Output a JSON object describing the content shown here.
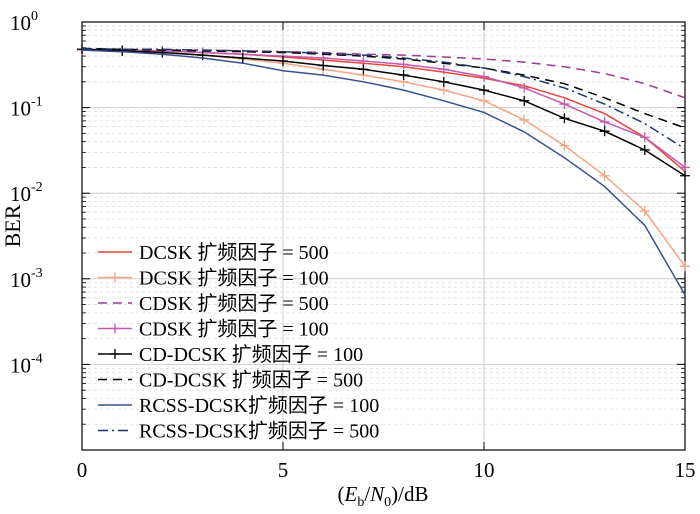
{
  "chart_data": {
    "type": "line",
    "xlabel_parts": {
      "lparen": "(",
      "E": "E",
      "b": "b",
      "slash": "/",
      "N": "N",
      "zero": "0",
      "tail": ")/dB"
    },
    "ylabel": "BER",
    "xlim": [
      0,
      15
    ],
    "ylim": [
      1e-05,
      1
    ],
    "yscale": "log",
    "grid": true,
    "legend_position": "bottom-left",
    "x_ticks": [
      0,
      5,
      10,
      15
    ],
    "x_tick_labels": [
      "0",
      "5",
      "10",
      "15"
    ],
    "y_ticks": [
      {
        "value": 1,
        "base": "10",
        "exp": "0"
      },
      {
        "value": 0.1,
        "base": "10",
        "exp": "-1"
      },
      {
        "value": 0.01,
        "base": "10",
        "exp": "-2"
      },
      {
        "value": 0.001,
        "base": "10",
        "exp": "-3"
      },
      {
        "value": 0.0001,
        "base": "10",
        "exp": "-4"
      }
    ],
    "x": [
      0,
      1,
      2,
      3,
      4,
      5,
      6,
      7,
      8,
      9,
      10,
      11,
      12,
      13,
      14,
      15
    ],
    "series": [
      {
        "name": "DCSK  扩频因子 = 500",
        "color": "#e8453c",
        "dash": "",
        "marker": "none",
        "values": [
          0.48,
          0.47,
          0.46,
          0.44,
          0.42,
          0.39,
          0.36,
          0.33,
          0.3,
          0.26,
          0.22,
          0.18,
          0.13,
          0.085,
          0.045,
          0.018
        ]
      },
      {
        "name": "DCSK  扩频因子 = 100",
        "color": "#f4a582",
        "dash": "",
        "marker": "plus",
        "values": [
          0.47,
          0.46,
          0.44,
          0.41,
          0.37,
          0.33,
          0.28,
          0.24,
          0.2,
          0.16,
          0.12,
          0.072,
          0.036,
          0.016,
          0.0062,
          0.0014
        ]
      },
      {
        "name": "CDSK  扩频因子 = 500",
        "color": "#9b3d8f",
        "dash": "9,6",
        "marker": "none",
        "values": [
          0.48,
          0.48,
          0.47,
          0.47,
          0.46,
          0.45,
          0.44,
          0.42,
          0.41,
          0.39,
          0.37,
          0.34,
          0.3,
          0.25,
          0.19,
          0.13
        ]
      },
      {
        "name": "CDSK  扩频因子 = 100",
        "color": "#c45ab0",
        "dash": "",
        "marker": "plus",
        "values": [
          0.48,
          0.47,
          0.46,
          0.44,
          0.42,
          0.4,
          0.38,
          0.35,
          0.32,
          0.28,
          0.23,
          0.17,
          0.11,
          0.068,
          0.045,
          0.02
        ]
      },
      {
        "name": "CD-DCSK  扩频因子 = 100",
        "color": "#000000",
        "dash": "",
        "marker": "plus",
        "values": [
          0.48,
          0.46,
          0.44,
          0.41,
          0.38,
          0.35,
          0.31,
          0.28,
          0.24,
          0.2,
          0.16,
          0.12,
          0.075,
          0.053,
          0.032,
          0.016
        ]
      },
      {
        "name": "CD-DCSK  扩频因子 = 500",
        "color": "#000000",
        "dash": "9,6",
        "marker": "none",
        "values": [
          0.49,
          0.48,
          0.47,
          0.46,
          0.45,
          0.44,
          0.42,
          0.4,
          0.37,
          0.33,
          0.29,
          0.24,
          0.19,
          0.13,
          0.085,
          0.058
        ]
      },
      {
        "name": "RCSS-DCSK扩频因子 = 100",
        "color": "#3a4f8f",
        "dash": "",
        "marker": "none",
        "values": [
          0.47,
          0.45,
          0.42,
          0.38,
          0.33,
          0.27,
          0.24,
          0.2,
          0.16,
          0.12,
          0.088,
          0.052,
          0.026,
          0.012,
          0.0042,
          0.00065
        ]
      },
      {
        "name": "RCSS-DCSK扩频因子 = 500",
        "color": "#1d3566",
        "dash": "10,4,2,4",
        "marker": "none",
        "values": [
          0.49,
          0.48,
          0.48,
          0.47,
          0.46,
          0.45,
          0.43,
          0.41,
          0.38,
          0.34,
          0.29,
          0.23,
          0.17,
          0.11,
          0.065,
          0.033
        ]
      }
    ]
  }
}
